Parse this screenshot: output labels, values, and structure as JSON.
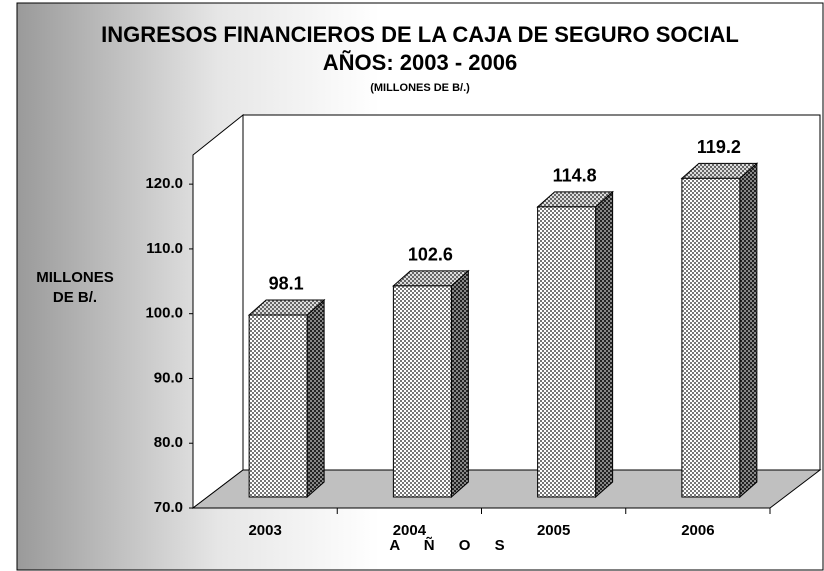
{
  "chart_data": {
    "type": "bar3d",
    "title": "INGRESOS FINANCIEROS DE LA CAJA DE SEGURO SOCIAL",
    "subtitle": "AÑOS: 2003 - 2006",
    "note": "(MILLONES DE B/.)",
    "y_label_lines": [
      "MILLONES",
      "DE B/."
    ],
    "x_label": "A Ñ O S",
    "categories": [
      "2003",
      "2004",
      "2005",
      "2006"
    ],
    "values": [
      98.1,
      102.6,
      114.8,
      119.2
    ],
    "ylim": [
      70,
      124.5
    ],
    "yticks": [
      {
        "value": 70,
        "label": "70.0"
      },
      {
        "value": 80,
        "label": "80.0"
      },
      {
        "value": 90,
        "label": "90.0"
      },
      {
        "value": 100,
        "label": "100.0"
      },
      {
        "value": 110,
        "label": "110.0"
      },
      {
        "value": 120,
        "label": "120.0"
      }
    ],
    "grid": false
  }
}
